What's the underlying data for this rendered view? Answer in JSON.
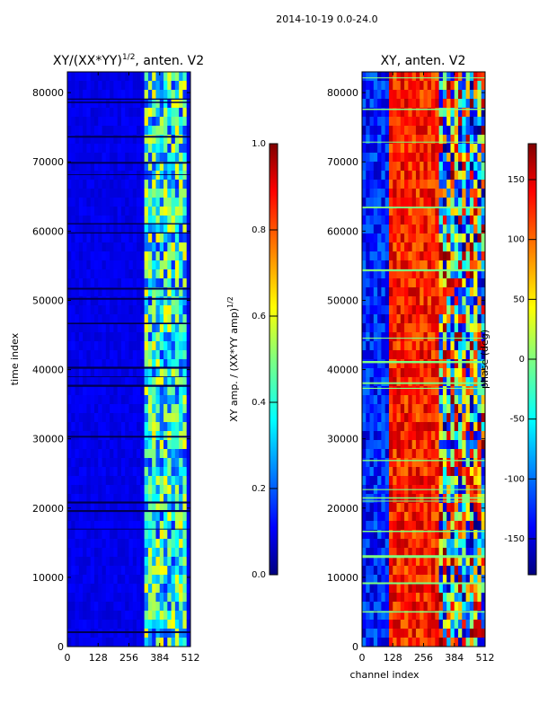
{
  "figure": {
    "suptitle": "2014-10-19 0.0-24.0"
  },
  "chart_data": [
    {
      "type": "heatmap",
      "title": "XY/(XX*YY)",
      "title_superscript": "1/2",
      "title_suffix": ", anten. V2",
      "xlabel": "",
      "ylabel": "time index",
      "xlim": [
        0,
        512
      ],
      "ylim": [
        0,
        83000
      ],
      "xticks": [
        0,
        128,
        256,
        384,
        512
      ],
      "yticks": [
        0,
        10000,
        20000,
        30000,
        40000,
        50000,
        60000,
        70000,
        80000
      ],
      "colorbar": {
        "label": "XY amp. / (XX*YY amp)",
        "label_superscript": "1/2",
        "range": [
          0.0,
          1.0
        ],
        "ticks": [
          "0.0",
          "0.2",
          "0.4",
          "0.6",
          "0.8",
          "1.0"
        ],
        "colormap": "jet"
      }
    },
    {
      "type": "heatmap",
      "title": "XY, anten. V2",
      "xlabel": "channel index",
      "ylabel": "",
      "xlim": [
        0,
        512
      ],
      "ylim": [
        0,
        83000
      ],
      "xticks": [
        0,
        128,
        256,
        384,
        512
      ],
      "yticks": [
        0,
        10000,
        20000,
        30000,
        40000,
        50000,
        60000,
        70000,
        80000
      ],
      "colorbar": {
        "label": "phase (deg)",
        "range": [
          -180,
          180
        ],
        "ticks": [
          "-150",
          "-100",
          "-50",
          "0",
          "50",
          "100",
          "150"
        ],
        "colormap": "jet"
      }
    }
  ],
  "colors": {
    "background": "#ffffff",
    "axis": "#000000"
  }
}
